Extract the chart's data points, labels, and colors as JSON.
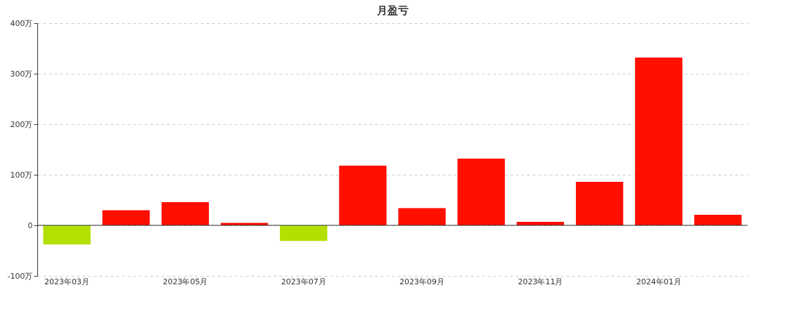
{
  "chart_data": {
    "type": "bar",
    "title": "月盈亏",
    "categories": [
      "2023年03月",
      null,
      "2023年05月",
      null,
      "2023年07月",
      null,
      "2023年09月",
      null,
      "2023年11月",
      null,
      "2024年01月",
      null
    ],
    "values": [
      -38,
      30,
      46,
      5,
      -31,
      118,
      34,
      132,
      7,
      86,
      332,
      21
    ],
    "colors": [
      "#b3e000",
      "#ff0f00",
      "#ff0f00",
      "#ff0f00",
      "#b3e000",
      "#ff0f00",
      "#ff0f00",
      "#ff0f00",
      "#ff0f00",
      "#ff0f00",
      "#ff0f00",
      "#ff0f00"
    ],
    "ylim": [
      -100,
      400
    ],
    "yticks": [
      {
        "value": -100,
        "label": "-100万"
      },
      0,
      {
        "value": 100,
        "label": "100万"
      },
      {
        "value": 200,
        "label": "200万"
      },
      {
        "value": 300,
        "label": "300万"
      },
      {
        "value": 400,
        "label": "400万"
      }
    ],
    "grid": "y"
  }
}
